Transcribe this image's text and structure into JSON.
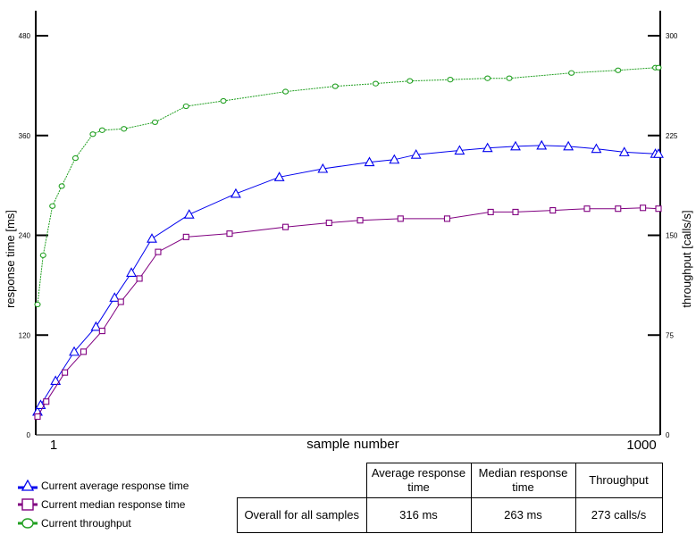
{
  "chart_data": {
    "type": "line",
    "xlabel": "sample number",
    "ylabel_left": "response time [ms]",
    "ylabel_right": "throughput [calls/s]",
    "xlim": [
      1,
      1000
    ],
    "x_tick_labels": [
      "1",
      "1000"
    ],
    "ylim_left": [
      0,
      480
    ],
    "ylim_right": [
      0,
      300
    ],
    "left_ticks": [
      0,
      120,
      240,
      360,
      480
    ],
    "right_ticks": [
      0,
      75,
      150,
      225,
      300
    ],
    "series": [
      {
        "name": "Current average response time",
        "axis": "left",
        "color": "#0000ee",
        "marker": "triangle",
        "x": [
          1,
          6,
          30,
          60,
          95,
          125,
          152,
          185,
          245,
          320,
          390,
          460,
          535,
          575,
          610,
          680,
          725,
          770,
          812,
          855,
          900,
          945,
          995,
          1000
        ],
        "y": [
          28,
          36,
          65,
          100,
          130,
          165,
          195,
          236,
          265,
          290,
          310,
          320,
          328,
          331,
          337,
          342,
          345,
          347,
          348,
          347,
          344,
          340,
          338,
          338
        ]
      },
      {
        "name": "Current median response time",
        "axis": "left",
        "color": "#800080",
        "marker": "square",
        "x": [
          1,
          15,
          45,
          75,
          105,
          135,
          165,
          195,
          240,
          310,
          400,
          470,
          520,
          585,
          660,
          730,
          770,
          830,
          885,
          935,
          975,
          1000
        ],
        "y": [
          22,
          40,
          75,
          100,
          125,
          160,
          188,
          220,
          238,
          242,
          250,
          255,
          258,
          260,
          260,
          268,
          268,
          270,
          272,
          272,
          273,
          272
        ]
      },
      {
        "name": "Current throughput",
        "axis": "right",
        "color": "#22a022",
        "marker": "circle",
        "x": [
          1,
          10,
          25,
          40,
          62,
          90,
          105,
          140,
          190,
          240,
          300,
          400,
          480,
          545,
          600,
          665,
          725,
          760,
          860,
          935,
          995,
          1000
        ],
        "y": [
          98,
          135,
          172,
          187,
          208,
          226,
          229,
          230,
          235,
          247,
          251,
          258,
          262,
          264,
          266,
          267,
          268,
          268,
          272,
          274,
          276,
          276
        ]
      }
    ]
  },
  "legend": {
    "avg": "Current average response time",
    "median": "Current median response time",
    "throughput": "Current throughput"
  },
  "table": {
    "headers": [
      "Average response time",
      "Median response time",
      "Throughput"
    ],
    "row_label": "Overall for all samples",
    "values": [
      "316 ms",
      "263 ms",
      "273 calls/s"
    ]
  }
}
